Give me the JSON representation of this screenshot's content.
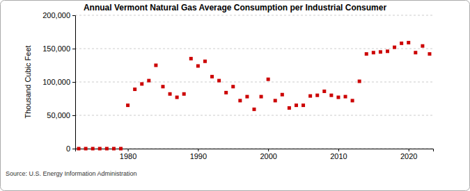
{
  "chart_data": {
    "type": "scatter",
    "title": "Annual Vermont Natural Gas Average Consumption per Industrial Consumer",
    "y_label": "Thousand Cubic Feet",
    "annotations": [
      "Source: U.S. Energy Information Administration"
    ],
    "x": [
      1973,
      1974,
      1975,
      1976,
      1977,
      1978,
      1979,
      1980,
      1981,
      1982,
      1983,
      1984,
      1985,
      1986,
      1987,
      1988,
      1989,
      1990,
      1991,
      1992,
      1993,
      1994,
      1995,
      1996,
      1997,
      1998,
      1999,
      2000,
      2001,
      2002,
      2003,
      2004,
      2005,
      2006,
      2007,
      2008,
      2009,
      2010,
      2011,
      2012,
      2013,
      2014,
      2015,
      2016,
      2017,
      2018,
      2019,
      2020,
      2021,
      2022,
      2023
    ],
    "values": [
      0,
      0,
      0,
      0,
      0,
      0,
      0,
      65000,
      89000,
      97000,
      102000,
      125000,
      93000,
      82000,
      77000,
      82000,
      135000,
      124000,
      131000,
      108000,
      102000,
      84000,
      93000,
      72000,
      78000,
      59000,
      78000,
      104000,
      72000,
      81000,
      61000,
      65000,
      65000,
      79000,
      80000,
      86000,
      80000,
      77000,
      78000,
      72000,
      101000,
      142000,
      144000,
      145000,
      146000,
      152000,
      158000,
      159000,
      144000,
      154000,
      142000
    ],
    "color": "#cc0000",
    "marker": "square",
    "xlim": [
      1972.5,
      2023.5
    ],
    "xticks": [
      1980,
      1990,
      2000,
      2010,
      2020
    ],
    "ylim": [
      0,
      200000
    ],
    "yticks": [
      0,
      {
        "value": 50000,
        "label": "50,000"
      },
      {
        "value": 100000,
        "label": "100,000"
      },
      {
        "value": 150000,
        "label": "150,000"
      },
      {
        "value": 200000,
        "label": "200,000"
      }
    ],
    "grid": true
  }
}
